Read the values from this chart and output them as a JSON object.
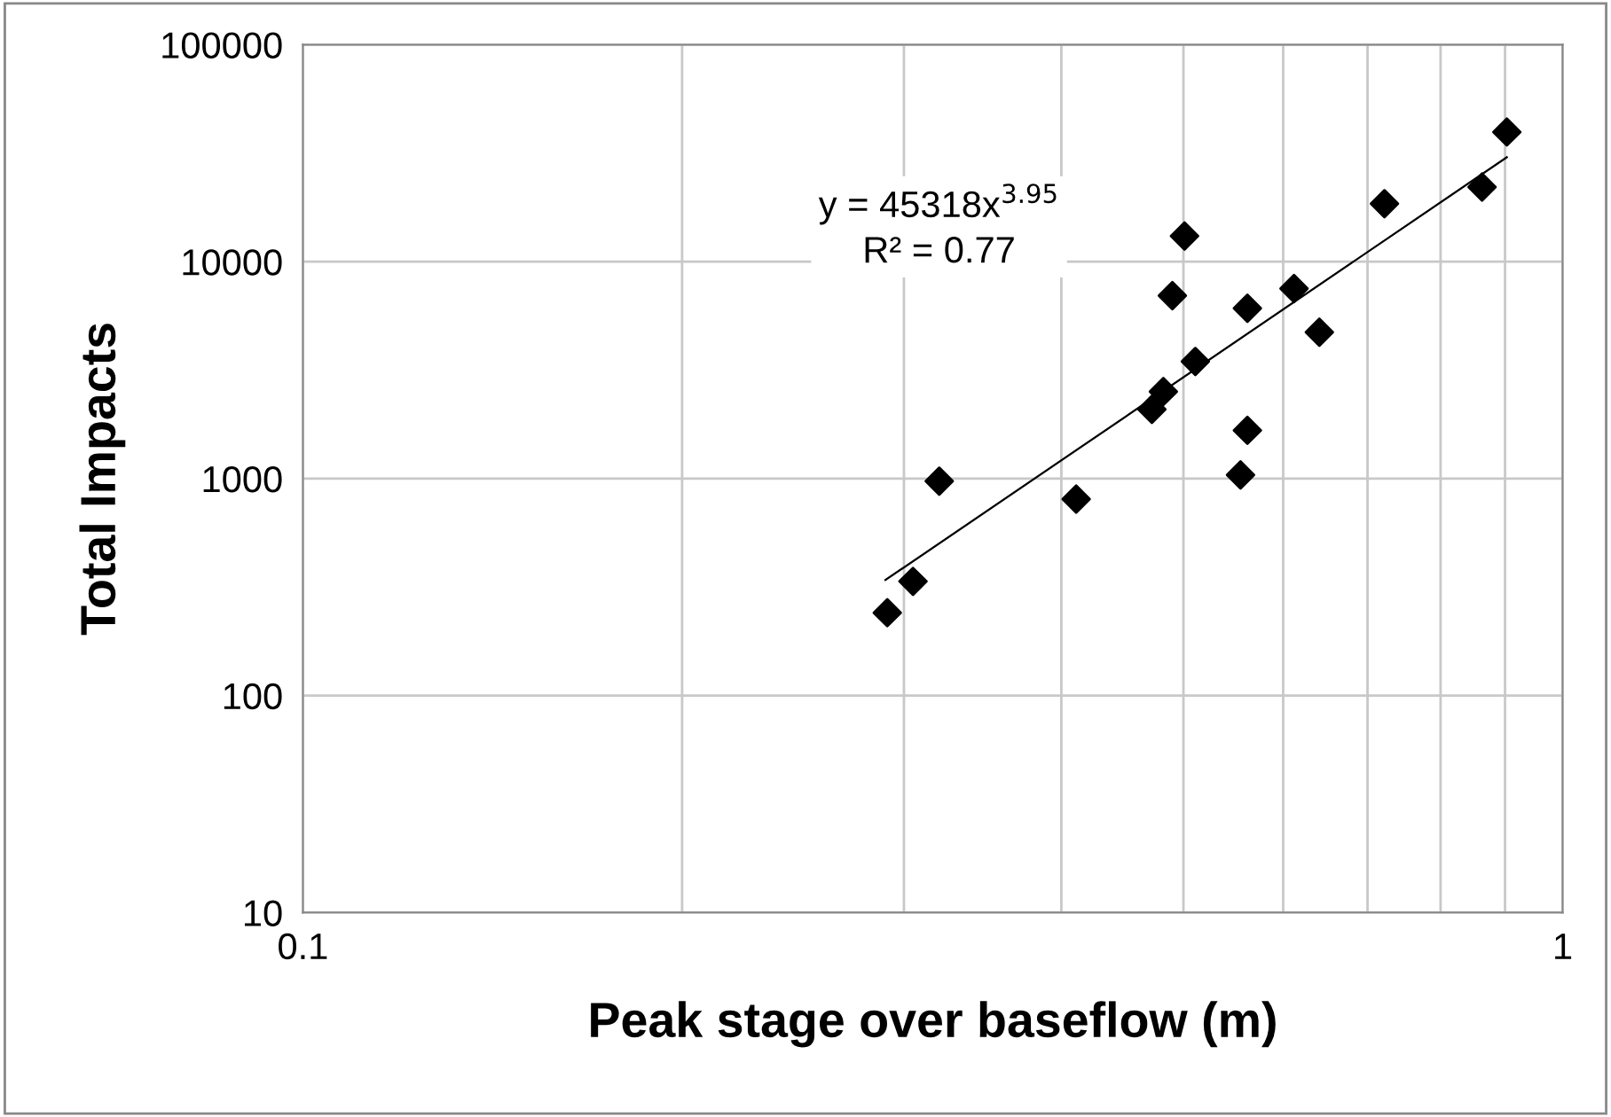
{
  "chart_data": {
    "type": "scatter",
    "xlabel": "Peak stage over baseflow (m)",
    "ylabel": "Total Impacts",
    "log": "xy",
    "grid": true,
    "marker": "diamond",
    "xlim": [
      0.1,
      1
    ],
    "ylim": [
      10,
      100000
    ],
    "xticks": [
      0.1,
      {
        "value": 0.2,
        "label": null
      },
      {
        "value": 0.3,
        "label": null
      },
      {
        "value": 0.4,
        "label": null
      },
      {
        "value": 0.5,
        "label": null
      },
      {
        "value": 0.6,
        "label": null
      },
      {
        "value": 0.7,
        "label": null
      },
      {
        "value": 0.8,
        "label": null
      },
      {
        "value": 0.9,
        "label": null
      },
      1
    ],
    "yticks": [
      10,
      100,
      1000,
      10000,
      100000
    ],
    "annotations": [
      "y = 45318x$^{3.95}$\nR² = 0.77"
    ],
    "series": [
      {
        "color": "#000000",
        "x": [
          0.291,
          0.305,
          0.32,
          0.411,
          0.472,
          0.482,
          0.49,
          0.501,
          0.511,
          0.555,
          0.562,
          0.562,
          0.612,
          0.641,
          0.722,
          0.863,
          0.903
        ],
        "values": [
          241,
          336,
          973,
          805,
          2085,
          2520,
          6970,
          13130,
          3465,
          1040,
          1670,
          6100,
          7520,
          4730,
          18490,
          22080,
          39580
        ]
      },
      {
        "type": "line",
        "color": "#000000",
        "marker": "none",
        "x": [
          0.29,
          0.903
        ],
        "values": [
          341,
          30280
        ]
      }
    ]
  }
}
